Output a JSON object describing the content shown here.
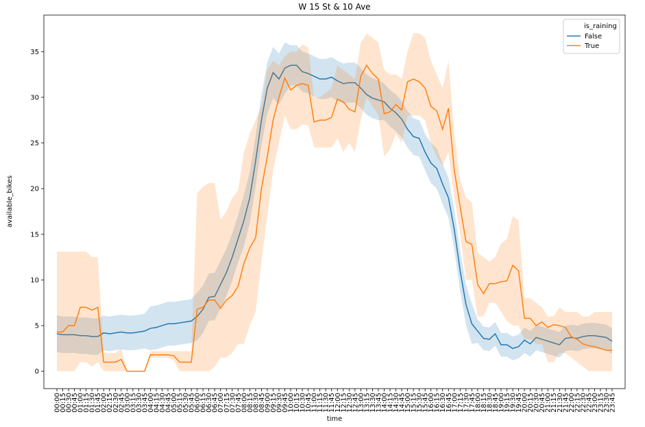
{
  "chart_data": {
    "type": "line",
    "title": "W 15 St & 10 Ave",
    "x_label": "time",
    "y_label": "available_bikes",
    "legend_title": "is_raining",
    "legend": "upper right",
    "categories": [
      "00:00",
      "00:15",
      "00:30",
      "00:45",
      "01:00",
      "01:15",
      "01:30",
      "01:45",
      "02:00",
      "02:15",
      "02:30",
      "02:45",
      "03:00",
      "03:15",
      "03:30",
      "03:45",
      "04:00",
      "04:15",
      "04:30",
      "04:45",
      "05:00",
      "05:15",
      "05:30",
      "05:45",
      "06:00",
      "06:15",
      "06:30",
      "06:45",
      "07:00",
      "07:15",
      "07:30",
      "07:45",
      "08:00",
      "08:15",
      "08:30",
      "08:45",
      "09:00",
      "09:15",
      "09:30",
      "09:45",
      "10:00",
      "10:15",
      "10:30",
      "10:45",
      "11:00",
      "11:15",
      "11:30",
      "11:45",
      "12:00",
      "12:15",
      "12:30",
      "12:45",
      "13:00",
      "13:15",
      "13:30",
      "13:45",
      "14:00",
      "14:15",
      "14:30",
      "14:45",
      "15:00",
      "15:15",
      "15:30",
      "15:45",
      "16:00",
      "16:15",
      "16:30",
      "16:45",
      "17:00",
      "17:15",
      "17:30",
      "17:45",
      "18:00",
      "18:15",
      "18:30",
      "18:45",
      "19:00",
      "19:15",
      "19:30",
      "19:45",
      "20:00",
      "20:15",
      "20:30",
      "20:45",
      "21:00",
      "21:15",
      "21:30",
      "21:45",
      "22:00",
      "22:15",
      "22:30",
      "22:45",
      "23:00",
      "23:15",
      "23:30",
      "23:45"
    ],
    "ylim": [
      -1.9,
      39
    ],
    "yticks": [
      0,
      5,
      10,
      15,
      20,
      25,
      30,
      35
    ],
    "series": [
      {
        "name": "False",
        "color": "#1f77b4",
        "values": [
          4.1,
          4.0,
          4.0,
          4.0,
          3.9,
          3.9,
          3.8,
          3.8,
          4.2,
          4.1,
          4.2,
          4.3,
          4.2,
          4.2,
          4.3,
          4.4,
          4.7,
          4.8,
          5.0,
          5.2,
          5.2,
          5.3,
          5.4,
          5.5,
          6.0,
          6.8,
          8.1,
          8.2,
          9.5,
          10.8,
          12.5,
          14.5,
          16.5,
          19.0,
          23.0,
          27.5,
          31.0,
          32.7,
          32.0,
          33.2,
          33.5,
          33.5,
          32.8,
          32.6,
          32.3,
          32.0,
          32.0,
          32.2,
          31.8,
          31.5,
          31.6,
          31.6,
          31.0,
          30.3,
          29.9,
          29.7,
          29.5,
          28.8,
          28.3,
          27.6,
          26.5,
          25.7,
          25.5,
          24.0,
          22.8,
          22.2,
          20.5,
          19.0,
          15.5,
          11.0,
          7.3,
          5.2,
          4.4,
          3.6,
          3.5,
          4.1,
          2.9,
          2.9,
          2.5,
          2.7,
          3.4,
          3.0,
          3.7,
          3.5,
          3.3,
          3.1,
          2.9,
          3.6,
          3.7,
          3.6,
          3.8,
          3.9,
          3.9,
          3.8,
          3.7,
          3.3
        ],
        "lower": [
          2.1,
          2.0,
          2.0,
          2.0,
          1.9,
          1.9,
          1.8,
          1.8,
          2.3,
          2.2,
          2.3,
          2.4,
          2.3,
          2.3,
          2.4,
          2.5,
          2.3,
          2.4,
          2.6,
          2.8,
          2.8,
          2.9,
          3.0,
          3.1,
          3.4,
          4.2,
          5.5,
          5.6,
          6.9,
          8.2,
          9.9,
          11.9,
          13.7,
          16.2,
          20.2,
          24.7,
          28.2,
          29.9,
          29.2,
          30.4,
          31.3,
          31.3,
          30.6,
          30.4,
          30.1,
          29.8,
          29.8,
          30.0,
          29.6,
          29.3,
          29.4,
          29.4,
          28.8,
          28.1,
          27.7,
          27.5,
          27.5,
          26.8,
          26.3,
          25.6,
          24.5,
          23.7,
          23.5,
          22.0,
          20.6,
          20.0,
          18.3,
          16.8,
          13.3,
          8.8,
          5.1,
          3.0,
          3.1,
          2.3,
          2.2,
          2.8,
          1.6,
          1.6,
          1.2,
          1.4,
          2.0,
          1.6,
          2.3,
          2.1,
          1.9,
          1.7,
          1.5,
          2.2,
          2.3,
          2.2,
          2.4,
          2.5,
          2.5,
          2.4,
          2.3,
          1.9
        ],
        "upper": [
          6.1,
          6.0,
          6.0,
          6.0,
          5.9,
          5.9,
          5.8,
          5.8,
          6.1,
          6.0,
          6.1,
          6.2,
          6.1,
          6.1,
          6.2,
          6.3,
          7.1,
          7.2,
          7.4,
          7.6,
          7.6,
          7.7,
          7.8,
          7.9,
          8.6,
          9.4,
          10.7,
          10.8,
          12.1,
          13.4,
          15.1,
          17.1,
          19.3,
          21.8,
          25.8,
          30.3,
          33.8,
          35.5,
          34.8,
          36.0,
          35.7,
          35.7,
          35.0,
          34.8,
          34.5,
          34.2,
          34.2,
          34.4,
          34.0,
          33.7,
          33.8,
          33.8,
          33.2,
          32.5,
          32.1,
          31.9,
          31.5,
          30.8,
          30.3,
          29.6,
          28.5,
          27.7,
          27.5,
          26.0,
          25.0,
          24.4,
          22.7,
          21.2,
          17.7,
          13.2,
          9.5,
          7.4,
          5.7,
          4.9,
          4.8,
          5.4,
          4.2,
          4.2,
          3.8,
          4.0,
          4.8,
          4.4,
          5.1,
          4.9,
          4.7,
          4.5,
          4.3,
          5.0,
          5.1,
          5.0,
          5.2,
          5.3,
          5.3,
          5.2,
          5.1,
          4.7
        ]
      },
      {
        "name": "True",
        "color": "#ff7f0e",
        "values": [
          4.3,
          4.3,
          5.0,
          5.0,
          7.0,
          7.0,
          6.7,
          7.0,
          1.0,
          1.0,
          1.0,
          1.3,
          0.0,
          0.0,
          0.0,
          0.0,
          1.8,
          1.8,
          1.8,
          1.8,
          1.7,
          1.0,
          1.0,
          1.0,
          6.8,
          7.0,
          7.8,
          7.8,
          6.9,
          7.8,
          8.3,
          9.3,
          11.8,
          13.5,
          14.6,
          20.0,
          23.5,
          27.5,
          30.0,
          32.1,
          30.8,
          31.3,
          31.5,
          31.3,
          27.3,
          27.5,
          27.5,
          27.8,
          29.8,
          29.5,
          28.7,
          28.4,
          32.3,
          33.5,
          32.6,
          32.0,
          28.2,
          28.4,
          29.2,
          28.6,
          31.7,
          32.0,
          31.7,
          31.0,
          29.0,
          28.5,
          26.5,
          28.8,
          22.0,
          18.0,
          14.2,
          13.9,
          9.5,
          8.5,
          9.6,
          9.6,
          9.8,
          9.9,
          11.6,
          11.0,
          5.8,
          5.8,
          5.0,
          5.4,
          4.8,
          5.1,
          5.0,
          4.8,
          3.8,
          3.5,
          3.0,
          2.8,
          2.7,
          2.5,
          2.3,
          2.3
        ],
        "lower": [
          0,
          0,
          0,
          0,
          1,
          1,
          0.5,
          1,
          0,
          0,
          0,
          0,
          0,
          0,
          0,
          0,
          1.5,
          1.5,
          1.5,
          1.5,
          1.2,
          0,
          0,
          0,
          0,
          0,
          0,
          0.5,
          1.5,
          1.5,
          2,
          3,
          3,
          5,
          6.5,
          12,
          17,
          22,
          25,
          28,
          26.5,
          26.5,
          27,
          27,
          24.5,
          24.5,
          24.5,
          24.5,
          25.5,
          24,
          25,
          24,
          27.5,
          30,
          29,
          28,
          23.5,
          24.3,
          26,
          25,
          28,
          28,
          28,
          27.5,
          25,
          23.5,
          22.5,
          24,
          19,
          15,
          10,
          10,
          6,
          6,
          7.5,
          7.5,
          6.5,
          5.5,
          5,
          5,
          3.5,
          3.5,
          3,
          3,
          1,
          1,
          2,
          2,
          1.5,
          1,
          0.5,
          0,
          0,
          0,
          0,
          0
        ],
        "upper": [
          13.1,
          13.1,
          13.1,
          13.1,
          13.1,
          13.1,
          12.5,
          12.5,
          2,
          2,
          2,
          2.5,
          0,
          0,
          0,
          0,
          2.2,
          2.2,
          2.2,
          2.2,
          2.2,
          2.2,
          2.2,
          2.2,
          19.5,
          20.2,
          20.6,
          20.6,
          16.6,
          17.5,
          19,
          19.8,
          24,
          26,
          27.5,
          29,
          33,
          34,
          33.5,
          34.5,
          35,
          35,
          35.8,
          35.5,
          30,
          30,
          30.5,
          31,
          33.5,
          33,
          32.5,
          32,
          36,
          37,
          36.5,
          36,
          33,
          32.5,
          32.5,
          32,
          35,
          37,
          37,
          36.5,
          34,
          32.5,
          31,
          34,
          26,
          21,
          19,
          18.5,
          13,
          12.5,
          12,
          12.5,
          14,
          14.5,
          17,
          16.5,
          8,
          8,
          7.5,
          7,
          6,
          6,
          7,
          6.5,
          6.5,
          6.5,
          6,
          6,
          6.5,
          6.5,
          6.5,
          6.5
        ]
      }
    ]
  }
}
